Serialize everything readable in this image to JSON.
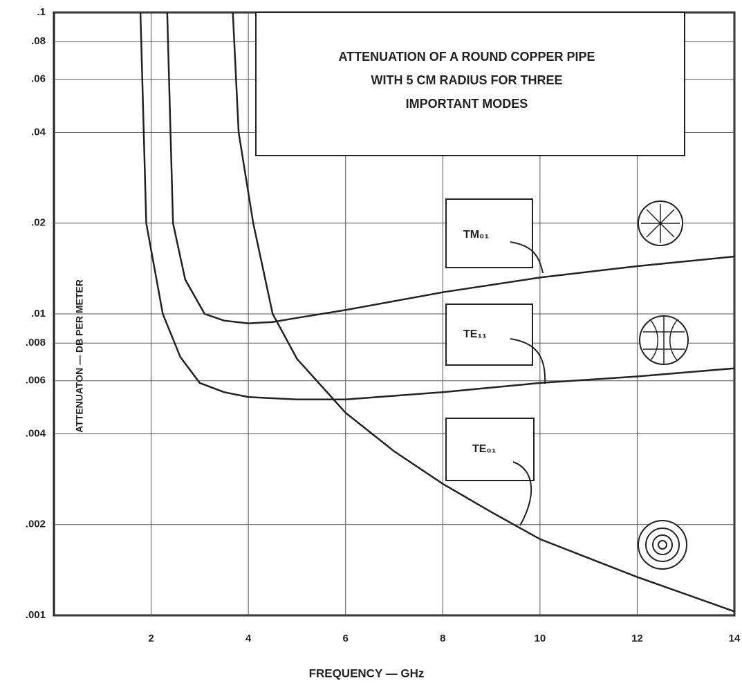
{
  "chart_data": {
    "type": "line",
    "title": [
      "ATTENUATION OF A ROUND COPPER PIPE",
      "WITH 5 CM RADIUS FOR THREE",
      "IMPORTANT MODES"
    ],
    "x_label": "FREQUENCY — GHz",
    "y_label": "ATTENUATON — DB PER METER",
    "xlim": [
      0,
      14
    ],
    "ylim": [
      0.001,
      0.1
    ],
    "y_scale": "log",
    "grid": true,
    "xticks": [
      2,
      4,
      6,
      8,
      10,
      12,
      14
    ],
    "yticks": [
      {
        "value": 0.1,
        "label": ".1"
      },
      {
        "value": 0.08,
        "label": ".08"
      },
      {
        "value": 0.06,
        "label": ".06"
      },
      {
        "value": 0.04,
        "label": ".04"
      },
      {
        "value": 0.02,
        "label": ".02"
      },
      {
        "value": 0.01,
        "label": ".01"
      },
      {
        "value": 0.008,
        "label": ".008"
      },
      {
        "value": 0.006,
        "label": ".006"
      },
      {
        "value": 0.004,
        "label": ".004"
      },
      {
        "value": 0.002,
        "label": ".002"
      },
      {
        "value": 0.001,
        "label": ".001"
      }
    ],
    "series": [
      {
        "name": "TM₀₁",
        "color": "#222222",
        "x": [
          2.33,
          2.45,
          2.7,
          3.1,
          3.5,
          4,
          4.5,
          5,
          6,
          8,
          10,
          12,
          14
        ],
        "values": [
          0.1,
          0.02,
          0.013,
          0.01,
          0.0095,
          0.0093,
          0.0094,
          0.0097,
          0.0103,
          0.0118,
          0.0132,
          0.0144,
          0.0155
        ]
      },
      {
        "name": "TE₁₁",
        "color": "#222222",
        "x": [
          1.78,
          1.9,
          2.24,
          2.6,
          3,
          3.5,
          4,
          5,
          6,
          8,
          10,
          12,
          14
        ],
        "values": [
          0.1,
          0.02,
          0.01,
          0.0072,
          0.0059,
          0.0055,
          0.0053,
          0.0052,
          0.0052,
          0.0055,
          0.0059,
          0.0062,
          0.0066
        ]
      },
      {
        "name": "TE₀₁",
        "color": "#222222",
        "x": [
          3.68,
          3.8,
          4.1,
          4.5,
          5,
          6,
          7,
          8,
          9,
          10,
          12,
          14
        ],
        "values": [
          0.1,
          0.04,
          0.02,
          0.01,
          0.0071,
          0.0047,
          0.0035,
          0.00273,
          0.0022,
          0.00179,
          0.00134,
          0.00103
        ]
      }
    ]
  }
}
